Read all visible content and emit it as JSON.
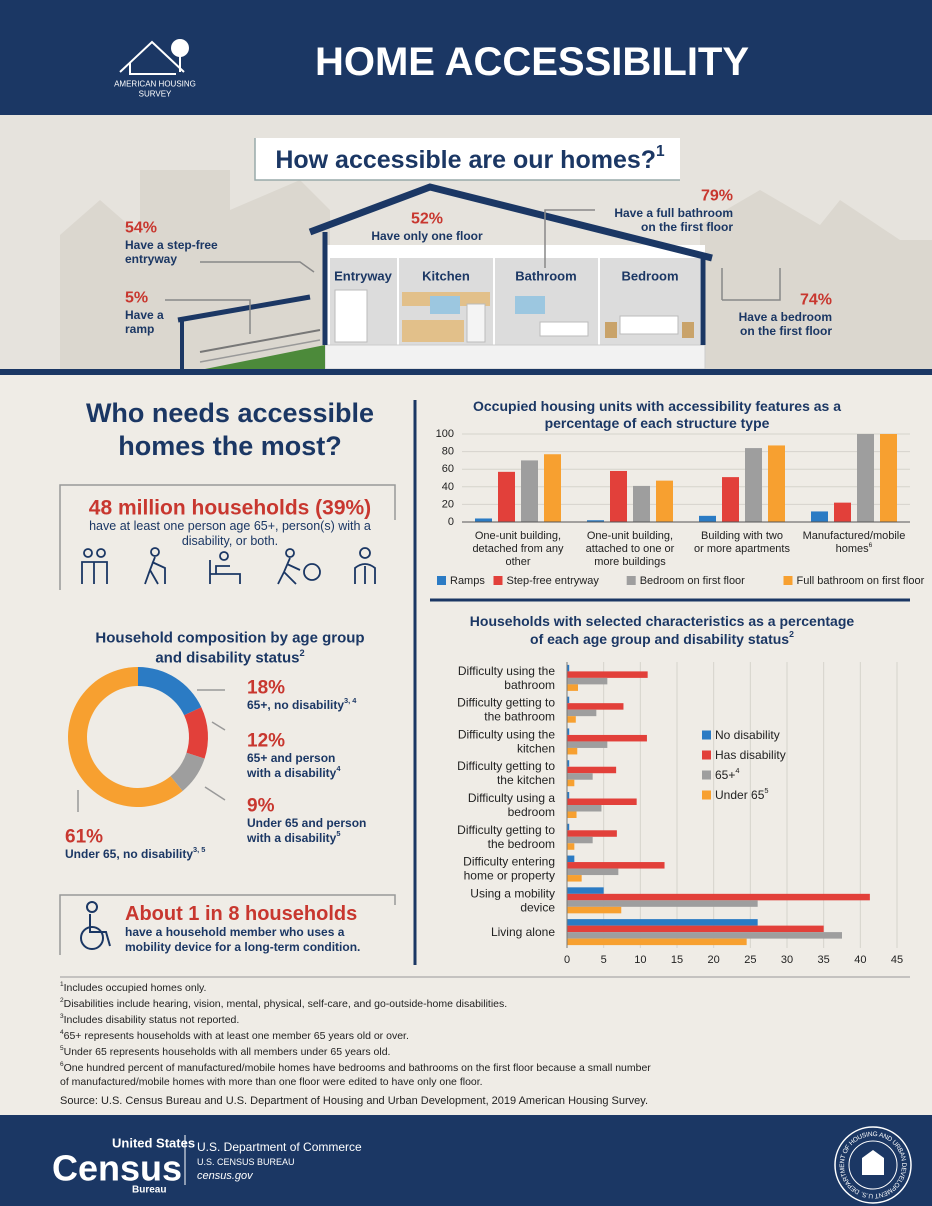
{
  "header": {
    "org": [
      "AMERICAN HOUSING",
      "SURVEY"
    ],
    "title": "HOME ACCESSIBILITY"
  },
  "house": {
    "question": "How accessible are our homes?",
    "question_sup": "1",
    "rooms": [
      "Entryway",
      "Kitchen",
      "Bathroom",
      "Bedroom"
    ],
    "stats": [
      {
        "value": "54%",
        "label": [
          "Have a step-free",
          "entryway"
        ]
      },
      {
        "value": "5%",
        "label": [
          "Have a",
          "ramp"
        ]
      },
      {
        "value": "52%",
        "label": [
          "Have only one floor"
        ]
      },
      {
        "value": "79%",
        "label": [
          "Have a full bathroom",
          "on the first floor"
        ]
      },
      {
        "value": "74%",
        "label": [
          "Have a bedroom",
          "on the first floor"
        ]
      }
    ]
  },
  "needs": {
    "title": [
      "Who needs accessible",
      "homes the most?"
    ],
    "headline": "48 million households (39%)",
    "text": [
      "have at least one person age 65+, person(s) with a",
      "disability, or both."
    ]
  },
  "mobility": {
    "headline": "About 1 in 8 households",
    "text": [
      "have a household member who uses a",
      "mobility device for a long-term condition."
    ]
  },
  "chart_data": [
    {
      "type": "bar",
      "title": [
        "Occupied housing units with accessibility features as a",
        "percentage of each structure type"
      ],
      "categories": [
        "One-unit building, detached from any other",
        "One-unit building, attached to one or more buildings",
        "Building with two or more apartments",
        "Manufactured/mobile homes"
      ],
      "last_category_sup": "6",
      "series": [
        {
          "name": "Ramps",
          "color": "#2b7bc4",
          "values": [
            4,
            2,
            7,
            12
          ]
        },
        {
          "name": "Step-free entryway",
          "color": "#e2403a",
          "values": [
            57,
            58,
            51,
            22
          ]
        },
        {
          "name": "Bedroom on first floor",
          "color": "#9e9e9e",
          "values": [
            70,
            41,
            84,
            100
          ]
        },
        {
          "name": "Full bathroom on first floor",
          "color": "#f7a030",
          "values": [
            77,
            47,
            87,
            100
          ]
        }
      ],
      "ylim": [
        0,
        100
      ],
      "yticks": [
        0,
        20,
        40,
        60,
        80,
        100
      ],
      "grid": true,
      "legend": "bottom"
    },
    {
      "type": "donut",
      "title": [
        "Household composition by age group",
        "and disability status"
      ],
      "title_sup": "2",
      "categories": [
        [
          "65+, no disability"
        ],
        [
          "65+ and person",
          "with a disability"
        ],
        [
          "Under 65 and person",
          "with a disability"
        ],
        [
          "Under 65, no disability"
        ]
      ],
      "category_sups": [
        "3, 4",
        "4",
        "5",
        "3, 5"
      ],
      "values": [
        18,
        12,
        9,
        61
      ],
      "value_labels": [
        "18%",
        "12%",
        "9%",
        "61%"
      ],
      "colors": [
        "#2b7bc4",
        "#e2403a",
        "#9e9e9e",
        "#f7a030"
      ]
    },
    {
      "type": "hbar",
      "title": [
        "Households with selected characteristics as a percentage",
        "of each age group and disability status"
      ],
      "title_sup": "2",
      "categories": [
        "Difficulty using the bathroom",
        "Difficulty getting to the bathroom",
        "Difficulty using the kitchen",
        "Difficulty getting to the kitchen",
        "Difficulty using a bedroom",
        "Difficulty getting to the bedroom",
        "Difficulty entering home or property",
        "Using a mobility device",
        "Living alone"
      ],
      "series": [
        {
          "name": "No disability",
          "color": "#2b7bc4",
          "values": [
            0.3,
            0.3,
            0.3,
            0.3,
            0.3,
            0.3,
            1,
            5,
            26
          ]
        },
        {
          "name": "Has disability",
          "color": "#e2403a",
          "values": [
            11,
            7.7,
            10.9,
            6.7,
            9.5,
            6.8,
            13.3,
            41.3,
            35
          ]
        },
        {
          "name": "65+",
          "sup": "4",
          "color": "#9e9e9e",
          "values": [
            5.5,
            4,
            5.5,
            3.5,
            4.7,
            3.5,
            7,
            26,
            37.5
          ]
        },
        {
          "name": "Under 65",
          "sup": "5",
          "color": "#f7a030",
          "values": [
            1.5,
            1.2,
            1.4,
            1,
            1.3,
            1,
            2,
            7.4,
            24.5
          ]
        }
      ],
      "xlim": [
        0,
        45
      ],
      "xticks": [
        0,
        5,
        10,
        15,
        20,
        25,
        30,
        35,
        40,
        45
      ],
      "grid": true,
      "legend": "right"
    }
  ],
  "footnotes": [
    {
      "mark": "1",
      "text": [
        "Includes occupied homes only."
      ]
    },
    {
      "mark": "2",
      "text": [
        "Disabilities include hearing, vision, mental, physical, self-care, and go-outside-home disabilities."
      ]
    },
    {
      "mark": "3",
      "text": [
        "Includes disability status not reported."
      ]
    },
    {
      "mark": "4",
      "text": [
        "65+ represents households with at least one member 65 years old or over."
      ]
    },
    {
      "mark": "5",
      "text": [
        "Under 65 represents households with all members under 65 years old."
      ]
    },
    {
      "mark": "6",
      "text": [
        "One hundred percent of manufactured/mobile homes have bedrooms and bathrooms on the first floor because a small number",
        "of manufactured/mobile homes with more than one floor were edited to have only one floor."
      ]
    }
  ],
  "source": "Source: U.S. Census Bureau and U.S. Department of Housing and Urban Development, 2019 American Housing Survey.",
  "footer": {
    "logo": [
      "United States",
      "Census",
      "Bureau"
    ],
    "dept": "U.S. Department of Commerce",
    "bureau": "U.S. CENSUS BUREAU",
    "site": "census.gov",
    "seal": "U.S. DEPARTMENT OF HOUSING AND URBAN DEVELOPMENT"
  }
}
